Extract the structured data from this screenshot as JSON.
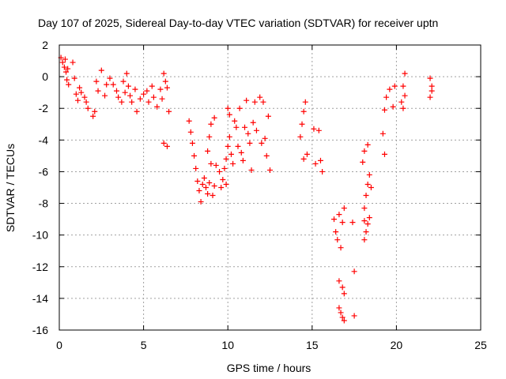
{
  "chart_data": {
    "type": "scatter",
    "title": "Day 107 of 2025, Sidereal Day-to-day VTEC variation (SDTVAR) for receiver uptn",
    "xlabel": "GPS time / hours",
    "ylabel": "SDTVAR / TECUs",
    "xlim": [
      0,
      25
    ],
    "ylim": [
      -16,
      2
    ],
    "xticks": [
      "0",
      "5",
      "10",
      "15",
      "20",
      "25"
    ],
    "yticks": [
      "2",
      "0",
      "-2",
      "-4",
      "-6",
      "-8",
      "-10",
      "-12",
      "-14",
      "-16"
    ],
    "grid": true,
    "marker": "plus",
    "color": "#ff0000",
    "series": [
      {
        "points": [
          [
            0.1,
            1.2
          ],
          [
            0.2,
            0.9
          ],
          [
            0.3,
            0.6
          ],
          [
            0.35,
            1.1
          ],
          [
            0.4,
            0.3
          ],
          [
            0.45,
            -0.2
          ],
          [
            0.5,
            0.5
          ],
          [
            0.55,
            -0.5
          ],
          [
            0.8,
            0.9
          ],
          [
            0.9,
            -0.1
          ],
          [
            1.0,
            -1.1
          ],
          [
            1.1,
            -1.5
          ],
          [
            1.2,
            -0.7
          ],
          [
            1.3,
            -1.0
          ],
          [
            1.5,
            -1.3
          ],
          [
            1.6,
            -1.6
          ],
          [
            1.7,
            -2.0
          ],
          [
            2.0,
            -2.5
          ],
          [
            2.1,
            -2.2
          ],
          [
            2.2,
            -0.3
          ],
          [
            2.3,
            -0.9
          ],
          [
            2.5,
            0.4
          ],
          [
            2.7,
            -1.2
          ],
          [
            2.8,
            -0.5
          ],
          [
            3.0,
            -0.1
          ],
          [
            3.2,
            -0.5
          ],
          [
            3.4,
            -0.9
          ],
          [
            3.5,
            -1.3
          ],
          [
            3.7,
            -1.6
          ],
          [
            3.8,
            -0.3
          ],
          [
            3.9,
            -1.0
          ],
          [
            4.0,
            0.2
          ],
          [
            4.1,
            -0.6
          ],
          [
            4.2,
            -1.2
          ],
          [
            4.3,
            -1.6
          ],
          [
            4.5,
            -0.8
          ],
          [
            4.6,
            -2.2
          ],
          [
            4.8,
            -1.4
          ],
          [
            5.0,
            -1.1
          ],
          [
            5.2,
            -0.9
          ],
          [
            5.3,
            -1.6
          ],
          [
            5.5,
            -0.6
          ],
          [
            5.6,
            -1.3
          ],
          [
            5.8,
            -1.9
          ],
          [
            6.0,
            -0.8
          ],
          [
            6.1,
            -1.4
          ],
          [
            6.2,
            0.2
          ],
          [
            6.3,
            -0.3
          ],
          [
            6.4,
            -0.7
          ],
          [
            6.5,
            -2.2
          ],
          [
            6.2,
            -4.2
          ],
          [
            6.4,
            -4.4
          ],
          [
            7.7,
            -2.8
          ],
          [
            7.8,
            -3.5
          ],
          [
            7.9,
            -4.2
          ],
          [
            8.0,
            -5.0
          ],
          [
            8.1,
            -5.8
          ],
          [
            8.2,
            -6.6
          ],
          [
            8.3,
            -7.2
          ],
          [
            8.4,
            -7.9
          ],
          [
            8.5,
            -6.8
          ],
          [
            8.6,
            -6.4
          ],
          [
            8.7,
            -7.0
          ],
          [
            8.8,
            -7.4
          ],
          [
            8.9,
            -6.7
          ],
          [
            9.0,
            -5.5
          ],
          [
            9.1,
            -7.5
          ],
          [
            9.2,
            -6.9
          ],
          [
            8.8,
            -4.7
          ],
          [
            8.9,
            -3.8
          ],
          [
            9.0,
            -3.0
          ],
          [
            9.2,
            -2.6
          ],
          [
            9.3,
            -5.6
          ],
          [
            9.5,
            -6.0
          ],
          [
            9.6,
            -7.0
          ],
          [
            9.7,
            -6.5
          ],
          [
            9.8,
            -5.8
          ],
          [
            9.9,
            -5.2
          ],
          [
            10.0,
            -4.4
          ],
          [
            10.1,
            -3.8
          ],
          [
            10.2,
            -4.9
          ],
          [
            10.3,
            -5.5
          ],
          [
            9.9,
            -6.8
          ],
          [
            10.0,
            -2.0
          ],
          [
            10.1,
            -2.4
          ],
          [
            10.4,
            -2.8
          ],
          [
            10.5,
            -3.2
          ],
          [
            10.6,
            -4.4
          ],
          [
            10.7,
            -2.0
          ],
          [
            10.8,
            -4.8
          ],
          [
            10.9,
            -5.3
          ],
          [
            11.0,
            -3.2
          ],
          [
            11.1,
            -1.5
          ],
          [
            11.2,
            -3.6
          ],
          [
            11.3,
            -4.2
          ],
          [
            11.4,
            -5.9
          ],
          [
            11.5,
            -2.9
          ],
          [
            11.6,
            -1.6
          ],
          [
            11.7,
            -3.4
          ],
          [
            11.9,
            -1.3
          ],
          [
            12.0,
            -4.2
          ],
          [
            12.1,
            -1.6
          ],
          [
            12.2,
            -3.9
          ],
          [
            12.3,
            -5.0
          ],
          [
            12.4,
            -2.5
          ],
          [
            12.5,
            -5.9
          ],
          [
            14.3,
            -3.8
          ],
          [
            14.4,
            -3.0
          ],
          [
            14.5,
            -2.2
          ],
          [
            14.6,
            -1.6
          ],
          [
            14.5,
            -5.2
          ],
          [
            14.7,
            -4.9
          ],
          [
            15.1,
            -3.3
          ],
          [
            15.2,
            -5.5
          ],
          [
            15.4,
            -3.4
          ],
          [
            15.5,
            -5.3
          ],
          [
            15.6,
            -6.0
          ],
          [
            16.3,
            -9.0
          ],
          [
            16.4,
            -9.8
          ],
          [
            16.5,
            -10.3
          ],
          [
            16.6,
            -8.7
          ],
          [
            16.7,
            -10.8
          ],
          [
            16.8,
            -9.2
          ],
          [
            16.9,
            -8.3
          ],
          [
            16.6,
            -12.9
          ],
          [
            16.8,
            -13.3
          ],
          [
            16.9,
            -13.7
          ],
          [
            16.6,
            -14.6
          ],
          [
            16.7,
            -14.9
          ],
          [
            16.8,
            -15.2
          ],
          [
            16.9,
            -15.4
          ],
          [
            17.5,
            -12.3
          ],
          [
            17.5,
            -15.1
          ],
          [
            17.4,
            -9.2
          ],
          [
            18.1,
            -10.3
          ],
          [
            18.2,
            -9.8
          ],
          [
            18.3,
            -9.3
          ],
          [
            18.4,
            -8.9
          ],
          [
            18.1,
            -8.3
          ],
          [
            18.2,
            -7.5
          ],
          [
            18.3,
            -6.8
          ],
          [
            18.4,
            -6.2
          ],
          [
            18.5,
            -7.0
          ],
          [
            18.0,
            -5.4
          ],
          [
            18.1,
            -4.7
          ],
          [
            18.3,
            -4.3
          ],
          [
            18.1,
            -9.1
          ],
          [
            19.2,
            -3.6
          ],
          [
            19.3,
            -2.1
          ],
          [
            19.4,
            -1.3
          ],
          [
            19.6,
            -0.8
          ],
          [
            19.8,
            -1.9
          ],
          [
            19.9,
            -0.6
          ],
          [
            19.3,
            -4.9
          ],
          [
            20.3,
            -1.6
          ],
          [
            20.4,
            -0.6
          ],
          [
            20.5,
            0.2
          ],
          [
            20.4,
            -2.0
          ],
          [
            20.5,
            -1.2
          ],
          [
            22.0,
            -1.3
          ],
          [
            22.1,
            -0.6
          ],
          [
            22.0,
            -0.1
          ],
          [
            22.1,
            -0.9
          ]
        ]
      }
    ]
  }
}
